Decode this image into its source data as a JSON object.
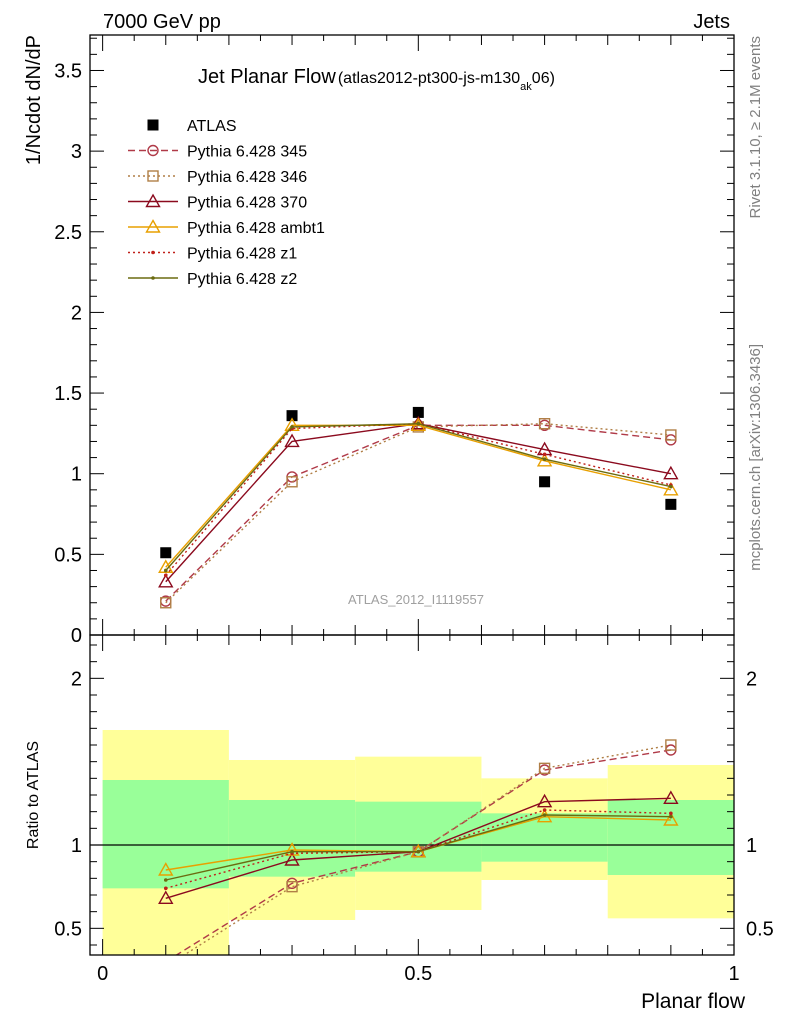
{
  "header": {
    "left": "7000 GeV pp",
    "right": "Jets"
  },
  "side": {
    "rivet": "Rivet 3.1.10, ≥ 2.1M events",
    "mcplots": "mcplots.cern.ch [arXiv:1306.3436]"
  },
  "title": {
    "main": "Jet Planar Flow",
    "sub_pre": "(atlas2012-pt300-js-m130",
    "sub_subscript": "ak",
    "sub_post": "06)"
  },
  "watermark": "ATLAS_2012_I1119557",
  "chart_data": [
    {
      "type": "scatter",
      "panel": "main",
      "ylabel": "1/Ncdot dN/dP",
      "xlim": [
        -0.02,
        1.0
      ],
      "ylim": [
        0,
        3.72
      ],
      "y_ticks": [
        0,
        0.5,
        1,
        1.5,
        2,
        2.5,
        3,
        3.5
      ],
      "y_tick_labels": [
        "0",
        "0.5",
        "1",
        "1.5",
        "2",
        "2.5",
        "3",
        "3.5"
      ],
      "x": [
        0.1,
        0.3,
        0.5,
        0.7,
        0.9
      ],
      "legend_position": "top-left",
      "series": [
        {
          "name": "ATLAS",
          "color": "#000000",
          "marker": "square",
          "line": "none",
          "values": [
            0.51,
            1.36,
            1.38,
            0.95,
            0.81
          ]
        },
        {
          "name": "Pythia 6.428 345",
          "color": "#b03a48",
          "marker": "circle",
          "line": "dashed",
          "values": [
            0.21,
            0.98,
            1.3,
            1.3,
            1.21
          ]
        },
        {
          "name": "Pythia 6.428 346",
          "color": "#b07f46",
          "marker": "square-open",
          "line": "dotted",
          "values": [
            0.2,
            0.95,
            1.29,
            1.31,
            1.24
          ]
        },
        {
          "name": "Pythia 6.428 370",
          "color": "#8b0a1e",
          "marker": "triangle",
          "line": "solid",
          "values": [
            0.33,
            1.2,
            1.31,
            1.15,
            1.0
          ]
        },
        {
          "name": "Pythia 6.428 ambt1",
          "color": "#e8a000",
          "marker": "triangle",
          "line": "solid",
          "values": [
            0.42,
            1.3,
            1.3,
            1.08,
            0.9
          ]
        },
        {
          "name": "Pythia 6.428 z1",
          "color": "#c0201a",
          "marker": "dot",
          "line": "dotted",
          "values": [
            0.37,
            1.28,
            1.31,
            1.12,
            0.93
          ]
        },
        {
          "name": "Pythia 6.428 z2",
          "color": "#6b6b10",
          "marker": "dot",
          "line": "solid",
          "values": [
            0.4,
            1.29,
            1.31,
            1.09,
            0.92
          ]
        }
      ]
    },
    {
      "type": "line",
      "panel": "ratio",
      "xlabel": "Planar flow",
      "ylabel": "Ratio to ATLAS",
      "xlim": [
        -0.02,
        1.0
      ],
      "ylim": [
        0.34,
        2.26
      ],
      "y_ticks": [
        0.5,
        1,
        2
      ],
      "y_tick_labels": [
        "0.5",
        "1",
        "2"
      ],
      "x_ticks": [
        0,
        0.5,
        1
      ],
      "x_tick_labels": [
        "0",
        "0.5",
        "1"
      ],
      "reference_line": 1,
      "bands": [
        {
          "x0": 0.0,
          "x1": 0.2,
          "green": [
            0.74,
            1.39
          ],
          "yellow": [
            0.34,
            1.69
          ]
        },
        {
          "x0": 0.2,
          "x1": 0.4,
          "green": [
            0.81,
            1.27
          ],
          "yellow": [
            0.55,
            1.51
          ]
        },
        {
          "x0": 0.4,
          "x1": 0.6,
          "green": [
            0.84,
            1.26
          ],
          "yellow": [
            0.61,
            1.53
          ]
        },
        {
          "x0": 0.6,
          "x1": 0.8,
          "green": [
            0.9,
            1.19
          ],
          "yellow": [
            0.79,
            1.4
          ]
        },
        {
          "x0": 0.8,
          "x1": 1.0,
          "green": [
            0.82,
            1.27
          ],
          "yellow": [
            0.56,
            1.48
          ]
        }
      ],
      "x": [
        0.1,
        0.3,
        0.5,
        0.7,
        0.9
      ],
      "series": [
        {
          "name": "Pythia 6.428 345",
          "color": "#b03a48",
          "marker": "circle",
          "line": "dashed",
          "values": [
            0.3,
            0.77,
            0.96,
            1.45,
            1.57
          ]
        },
        {
          "name": "Pythia 6.428 346",
          "color": "#b07f46",
          "marker": "square-open",
          "line": "dotted",
          "values": [
            0.27,
            0.75,
            0.96,
            1.46,
            1.6
          ]
        },
        {
          "name": "Pythia 6.428 370",
          "color": "#8b0a1e",
          "marker": "triangle",
          "line": "solid",
          "values": [
            0.68,
            0.91,
            0.96,
            1.26,
            1.28
          ]
        },
        {
          "name": "Pythia 6.428 ambt1",
          "color": "#e8a000",
          "marker": "triangle",
          "line": "solid",
          "values": [
            0.85,
            0.97,
            0.96,
            1.17,
            1.15
          ]
        },
        {
          "name": "Pythia 6.428 z1",
          "color": "#c0201a",
          "marker": "dot",
          "line": "dotted",
          "values": [
            0.74,
            0.95,
            0.96,
            1.21,
            1.19
          ]
        },
        {
          "name": "Pythia 6.428 z2",
          "color": "#6b6b10",
          "marker": "dot",
          "line": "solid",
          "values": [
            0.79,
            0.96,
            0.96,
            1.18,
            1.17
          ]
        }
      ]
    }
  ]
}
